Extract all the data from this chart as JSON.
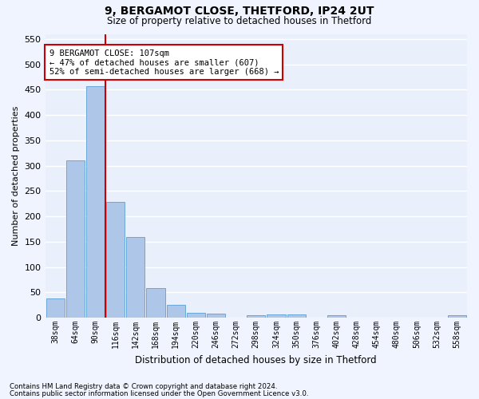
{
  "title1": "9, BERGAMOT CLOSE, THETFORD, IP24 2UT",
  "title2": "Size of property relative to detached houses in Thetford",
  "xlabel": "Distribution of detached houses by size in Thetford",
  "ylabel": "Number of detached properties",
  "bin_labels": [
    "38sqm",
    "64sqm",
    "90sqm",
    "116sqm",
    "142sqm",
    "168sqm",
    "194sqm",
    "220sqm",
    "246sqm",
    "272sqm",
    "298sqm",
    "324sqm",
    "350sqm",
    "376sqm",
    "402sqm",
    "428sqm",
    "454sqm",
    "480sqm",
    "506sqm",
    "532sqm",
    "558sqm"
  ],
  "bar_values": [
    38,
    310,
    457,
    228,
    160,
    58,
    25,
    10,
    8,
    0,
    5,
    6,
    6,
    0,
    5,
    0,
    0,
    0,
    0,
    0,
    5
  ],
  "bar_color": "#aec6e8",
  "bar_edge_color": "#5a9fd4",
  "bg_color": "#eaf0fb",
  "grid_color": "#ffffff",
  "vline_color": "#cc0000",
  "annotation_text": "9 BERGAMOT CLOSE: 107sqm\n← 47% of detached houses are smaller (607)\n52% of semi-detached houses are larger (668) →",
  "annotation_box_color": "#ffffff",
  "annotation_box_edge": "#cc0000",
  "footnote1": "Contains HM Land Registry data © Crown copyright and database right 2024.",
  "footnote2": "Contains public sector information licensed under the Open Government Licence v3.0.",
  "ylim": [
    0,
    560
  ],
  "yticks": [
    0,
    50,
    100,
    150,
    200,
    250,
    300,
    350,
    400,
    450,
    500,
    550
  ]
}
